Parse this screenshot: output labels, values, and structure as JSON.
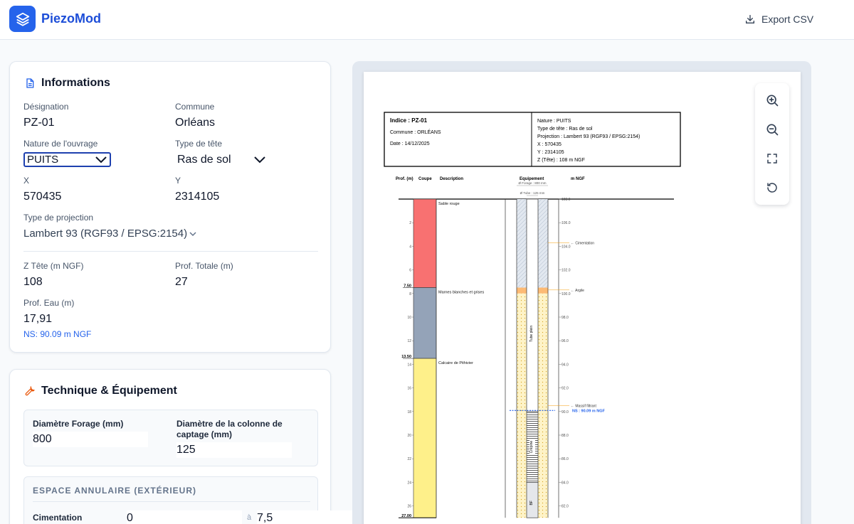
{
  "header": {
    "app_name": "PiezoMod",
    "export_label": "Export CSV"
  },
  "info": {
    "title": "Informations",
    "designation": {
      "label": "Désignation",
      "value": "PZ-01"
    },
    "commune": {
      "label": "Commune",
      "value": "Orléans"
    },
    "nature": {
      "label": "Nature de l'ouvrage",
      "value": "PUITS"
    },
    "type_tete": {
      "label": "Type de tête",
      "value": "Ras de sol"
    },
    "x": {
      "label": "X",
      "value": "570435"
    },
    "y": {
      "label": "Y",
      "value": "2314105"
    },
    "projection": {
      "label": "Type de projection",
      "value": "Lambert 93 (RGF93 / EPSG:2154)"
    },
    "z_tete": {
      "label": "Z Tête (m NGF)",
      "value": "108"
    },
    "prof_totale": {
      "label": "Prof. Totale (m)",
      "value": "27"
    },
    "prof_eau": {
      "label": "Prof. Eau (m)",
      "value": "17,91"
    },
    "ns": "NS: 90.09 m NGF"
  },
  "tech": {
    "title": "Technique & Équipement",
    "diam_forage": {
      "label": "Diamètre Forage (mm)",
      "value": "800"
    },
    "diam_colonne": {
      "label_l1": "Diamètre de la colonne de",
      "label_l2": "captage (mm)",
      "value": "125"
    },
    "annulaire": {
      "caption": "ESPACE ANNULAIRE (EXTÉRIEUR)",
      "row": {
        "label": "Cimentation",
        "from": "0",
        "sep": "à",
        "to": "7,5"
      }
    }
  },
  "log": {
    "header_left": {
      "indice": "Indice : PZ-01",
      "commune": "Commune : ORLÉANS",
      "date": "Date : 14/12/2025"
    },
    "header_right": [
      "Nature : PUITS",
      "Type de tête : Ras de sol",
      "Projection : Lambert 93 (RGF93 / EPSG:2154)",
      "X : 570435",
      "Y : 2314105",
      "Z (Tête) : 108 m NGF"
    ],
    "col_headers": {
      "prof": "Prof. (m)",
      "coupe": "Coupe",
      "description": "Description",
      "equipement": "Equipement",
      "ngf": "m NGF"
    },
    "dim_forage": "Ø Forage : 800 mm",
    "dim_tube": "Ø Tube : 125 mm",
    "z_top": 108,
    "total_depth": 27,
    "water_depth": 17.91,
    "depth_ticks": [
      2,
      4,
      6,
      8,
      10,
      12,
      14,
      16,
      18,
      20,
      22,
      24,
      26
    ],
    "ngf_ticks": [
      "108.0",
      "106.0",
      "104.0",
      "102.0",
      "100.0",
      "98.0",
      "96.0",
      "94.0",
      "92.0",
      "90.0",
      "88.0",
      "86.0",
      "84.0",
      "82.0"
    ],
    "layers": [
      {
        "name": "Sable rouge",
        "top": 0,
        "bottom": 7.5,
        "color": "#f87171",
        "top_label": ""
      },
      {
        "name": "Marnes blanches et grises",
        "top": 7.5,
        "bottom": 13.5,
        "color": "#94a3b8",
        "top_label": "7.50"
      },
      {
        "name": "Calcaire de Pithivier",
        "top": 13.5,
        "bottom": 27,
        "color": "#fef08a",
        "top_label": "13.50"
      }
    ],
    "bottom_label": "27.00",
    "annotations": [
      {
        "text": "Cimentation",
        "depth": 3.7
      },
      {
        "text": "Argile",
        "depth": 7.7
      },
      {
        "text": "Massif filtrant",
        "depth": 17.5
      }
    ],
    "ns_label": "NS : 90.09 m NGF",
    "tube_plein": "Tube plein",
    "crepine": "Crépine",
    "bf": "BF",
    "cement_bottom": 7.5,
    "clay_bottom": 8.0,
    "tube_plein_bottom": 18.0,
    "crepine_bottom": 24.0,
    "colors": {
      "cement": "#e2e8f0",
      "clay": "#fdba74",
      "filter": "#fef3c7",
      "water": "#2563eb"
    }
  }
}
